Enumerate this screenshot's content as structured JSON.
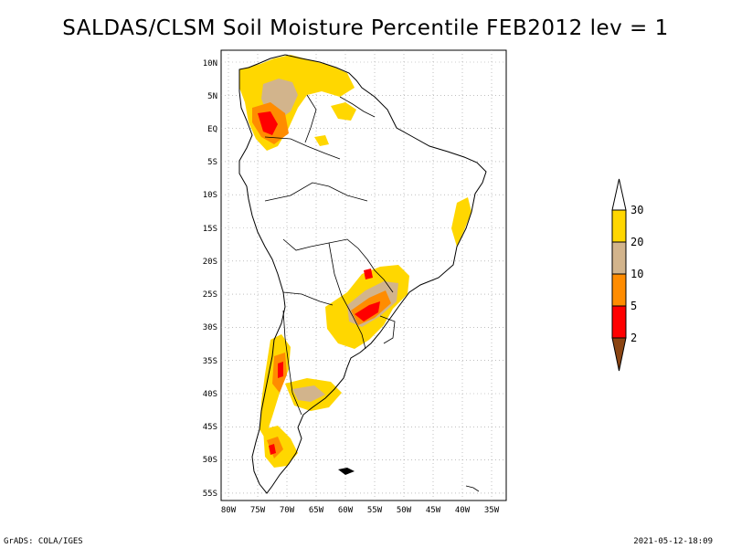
{
  "title": "SALDAS/CLSM Soil Moisture Percentile FEB2012 lev = 1",
  "axes": {
    "lat_labels": [
      "10N",
      "5N",
      "EQ",
      "5S",
      "10S",
      "15S",
      "20S",
      "25S",
      "30S",
      "35S",
      "40S",
      "45S",
      "50S",
      "55S"
    ],
    "lon_labels": [
      "80W",
      "75W",
      "70W",
      "65W",
      "60W",
      "55W",
      "50W",
      "45W",
      "40W",
      "35W"
    ]
  },
  "legend": {
    "labels": [
      "2",
      "5",
      "10",
      "20",
      "30"
    ],
    "colors": {
      "below_2": "#8b4513",
      "2_5": "#ff0000",
      "5_10": "#ff8c00",
      "10_20": "#d2b48c",
      "20_30": "#ffd700",
      "above_30": "#ffffff"
    }
  },
  "footer": {
    "left": "GrADS: COLA/IGES",
    "right": "2021-05-12-18:09"
  }
}
